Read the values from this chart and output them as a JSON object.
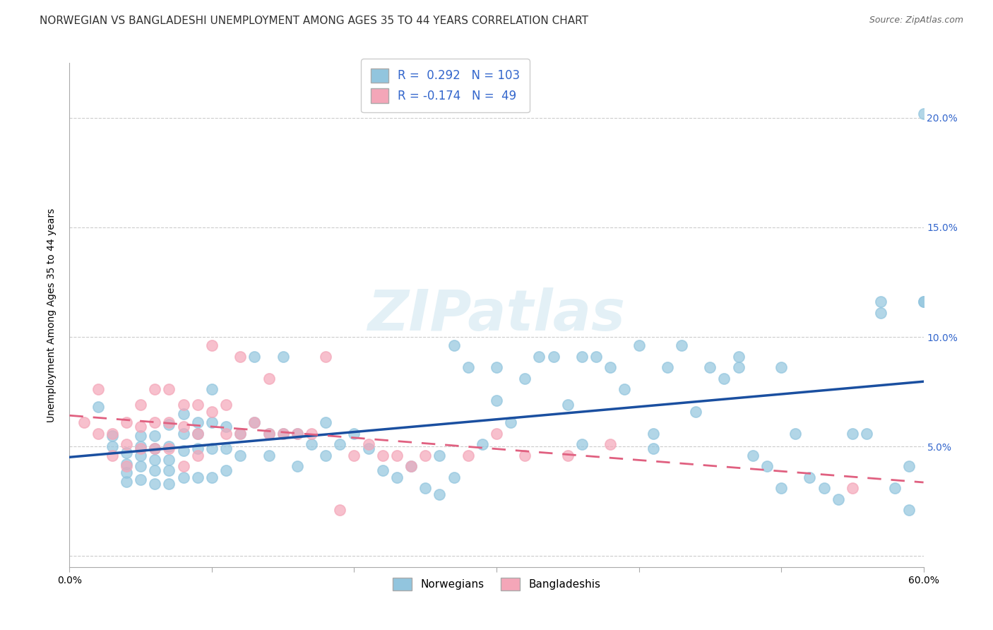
{
  "title": "NORWEGIAN VS BANGLADESHI UNEMPLOYMENT AMONG AGES 35 TO 44 YEARS CORRELATION CHART",
  "source": "Source: ZipAtlas.com",
  "ylabel": "Unemployment Among Ages 35 to 44 years",
  "xlim": [
    0.0,
    0.6
  ],
  "ylim": [
    -0.005,
    0.225
  ],
  "yticks": [
    0.0,
    0.05,
    0.1,
    0.15,
    0.2
  ],
  "ytick_labels_left": [
    "",
    "",
    "",
    "",
    ""
  ],
  "ytick_labels_right": [
    "",
    "5.0%",
    "10.0%",
    "15.0%",
    "20.0%"
  ],
  "xticks": [
    0.0,
    0.1,
    0.2,
    0.3,
    0.4,
    0.5,
    0.6
  ],
  "xtick_labels": [
    "0.0%",
    "",
    "",
    "",
    "",
    "",
    "60.0%"
  ],
  "norwegian_color": "#92c5de",
  "bangladeshi_color": "#f4a6b8",
  "trend_norwegian_color": "#1a4fa0",
  "trend_bangladeshi_color": "#e06080",
  "background_color": "#ffffff",
  "grid_color": "#cccccc",
  "tick_color": "#3366cc",
  "title_fontsize": 11,
  "axis_label_fontsize": 10,
  "tick_fontsize": 10,
  "source_fontsize": 9,
  "norwegian_R": 0.292,
  "norwegian_N": 103,
  "bangladeshi_R": -0.174,
  "bangladeshi_N": 49,
  "norwegian_x": [
    0.02,
    0.03,
    0.03,
    0.04,
    0.04,
    0.04,
    0.04,
    0.05,
    0.05,
    0.05,
    0.05,
    0.05,
    0.06,
    0.06,
    0.06,
    0.06,
    0.06,
    0.07,
    0.07,
    0.07,
    0.07,
    0.07,
    0.08,
    0.08,
    0.08,
    0.08,
    0.09,
    0.09,
    0.09,
    0.09,
    0.1,
    0.1,
    0.1,
    0.1,
    0.11,
    0.11,
    0.11,
    0.12,
    0.12,
    0.13,
    0.13,
    0.14,
    0.14,
    0.15,
    0.15,
    0.16,
    0.16,
    0.17,
    0.18,
    0.18,
    0.19,
    0.2,
    0.21,
    0.22,
    0.23,
    0.24,
    0.25,
    0.26,
    0.26,
    0.27,
    0.27,
    0.28,
    0.29,
    0.3,
    0.3,
    0.31,
    0.32,
    0.33,
    0.34,
    0.35,
    0.36,
    0.36,
    0.37,
    0.38,
    0.39,
    0.4,
    0.41,
    0.41,
    0.42,
    0.43,
    0.44,
    0.45,
    0.46,
    0.47,
    0.47,
    0.48,
    0.49,
    0.5,
    0.5,
    0.51,
    0.52,
    0.53,
    0.54,
    0.55,
    0.56,
    0.57,
    0.57,
    0.58,
    0.59,
    0.59,
    0.6,
    0.6,
    0.6
  ],
  "norwegian_y": [
    0.068,
    0.055,
    0.05,
    0.047,
    0.042,
    0.038,
    0.034,
    0.055,
    0.05,
    0.046,
    0.041,
    0.035,
    0.055,
    0.049,
    0.044,
    0.039,
    0.033,
    0.06,
    0.05,
    0.044,
    0.039,
    0.033,
    0.065,
    0.056,
    0.048,
    0.036,
    0.061,
    0.056,
    0.049,
    0.036,
    0.076,
    0.061,
    0.049,
    0.036,
    0.059,
    0.049,
    0.039,
    0.056,
    0.046,
    0.091,
    0.061,
    0.056,
    0.046,
    0.091,
    0.056,
    0.056,
    0.041,
    0.051,
    0.061,
    0.046,
    0.051,
    0.056,
    0.049,
    0.039,
    0.036,
    0.041,
    0.031,
    0.028,
    0.046,
    0.036,
    0.096,
    0.086,
    0.051,
    0.086,
    0.071,
    0.061,
    0.081,
    0.091,
    0.091,
    0.069,
    0.051,
    0.091,
    0.091,
    0.086,
    0.076,
    0.096,
    0.056,
    0.049,
    0.086,
    0.096,
    0.066,
    0.086,
    0.081,
    0.091,
    0.086,
    0.046,
    0.041,
    0.086,
    0.031,
    0.056,
    0.036,
    0.031,
    0.026,
    0.056,
    0.056,
    0.116,
    0.111,
    0.031,
    0.041,
    0.021,
    0.202,
    0.116,
    0.116
  ],
  "bangladeshi_x": [
    0.01,
    0.02,
    0.02,
    0.03,
    0.03,
    0.04,
    0.04,
    0.04,
    0.05,
    0.05,
    0.05,
    0.06,
    0.06,
    0.06,
    0.07,
    0.07,
    0.07,
    0.08,
    0.08,
    0.08,
    0.09,
    0.09,
    0.09,
    0.1,
    0.1,
    0.11,
    0.11,
    0.12,
    0.12,
    0.13,
    0.14,
    0.14,
    0.15,
    0.16,
    0.17,
    0.18,
    0.19,
    0.2,
    0.21,
    0.22,
    0.23,
    0.24,
    0.25,
    0.28,
    0.3,
    0.32,
    0.35,
    0.38,
    0.55
  ],
  "bangladeshi_y": [
    0.061,
    0.076,
    0.056,
    0.056,
    0.046,
    0.061,
    0.051,
    0.041,
    0.069,
    0.059,
    0.049,
    0.076,
    0.061,
    0.049,
    0.076,
    0.061,
    0.049,
    0.069,
    0.059,
    0.041,
    0.069,
    0.056,
    0.046,
    0.066,
    0.096,
    0.069,
    0.056,
    0.091,
    0.056,
    0.061,
    0.081,
    0.056,
    0.056,
    0.056,
    0.056,
    0.091,
    0.021,
    0.046,
    0.051,
    0.046,
    0.046,
    0.041,
    0.046,
    0.046,
    0.056,
    0.046,
    0.046,
    0.051,
    0.031
  ]
}
